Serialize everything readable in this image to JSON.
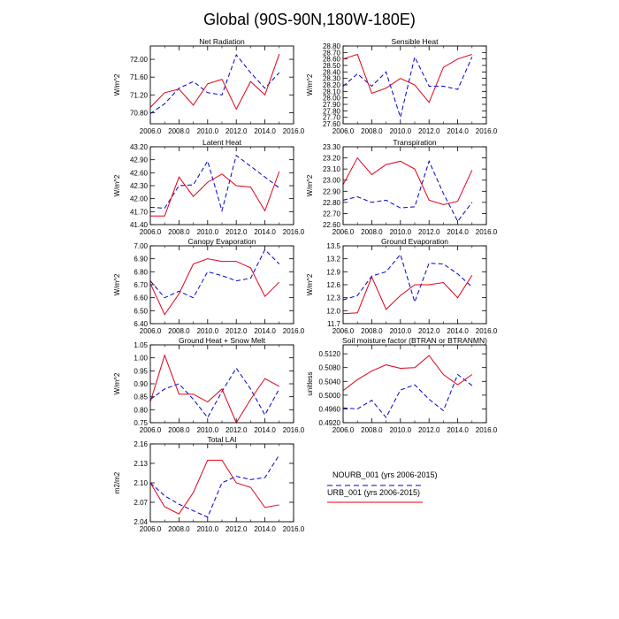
{
  "title": "Global (90S-90N,180W-180E)",
  "colors": {
    "nourb": "#0000cc",
    "urb": "#e0001a",
    "axis": "#000000"
  },
  "legend": {
    "nourb_label": "NOURB_001 (yrs 2006-2015)",
    "urb_label": "URB_001 (yrs 2006-2015)"
  },
  "chart_data": [
    {
      "type": "line",
      "title": "Net Radiation",
      "ylabel": "W/m^2",
      "xlim": [
        2006,
        2016
      ],
      "xticks": [
        "2006.0",
        "2008.0",
        "2010.0",
        "2012.0",
        "2014.0",
        "2016.0"
      ],
      "ylim": [
        70.55,
        72.3
      ],
      "yticks": [
        "70.80",
        "71.20",
        "71.60",
        "72.00"
      ],
      "ytick_values": [
        70.8,
        71.2,
        71.6,
        72.0
      ],
      "x": [
        2006,
        2007,
        2008,
        2009,
        2010,
        2011,
        2012,
        2013,
        2014,
        2015
      ],
      "series": [
        {
          "name": "NOURB_001 (yrs 2006-2015)",
          "values": [
            70.78,
            71.0,
            71.35,
            71.5,
            71.25,
            71.2,
            72.1,
            71.7,
            71.35,
            71.7
          ]
        },
        {
          "name": "URB_001 (yrs 2006-2015)",
          "values": [
            70.92,
            71.25,
            71.33,
            70.97,
            71.45,
            71.55,
            70.88,
            71.5,
            71.2,
            72.12
          ]
        }
      ]
    },
    {
      "type": "line",
      "title": "Sensible Heat",
      "ylabel": "W/m^2",
      "xlim": [
        2006,
        2016
      ],
      "xticks": [
        "2006.0",
        "2008.0",
        "2010.0",
        "2012.0",
        "2014.0",
        "2016.0"
      ],
      "ylim": [
        27.6,
        28.8
      ],
      "yticks": [
        "27.60",
        "27.70",
        "27.80",
        "27.90",
        "28.00",
        "28.10",
        "28.20",
        "28.30",
        "28.40",
        "28.50",
        "28.60",
        "28.70",
        "28.80"
      ],
      "ytick_values": [
        27.6,
        27.7,
        27.8,
        27.9,
        28.0,
        28.1,
        28.2,
        28.3,
        28.4,
        28.5,
        28.6,
        28.7,
        28.8
      ],
      "x": [
        2006,
        2007,
        2008,
        2009,
        2010,
        2011,
        2012,
        2013,
        2014,
        2015
      ],
      "series": [
        {
          "name": "NOURB_001 (yrs 2006-2015)",
          "values": [
            28.18,
            28.37,
            28.18,
            28.4,
            27.7,
            28.63,
            28.18,
            28.18,
            28.13,
            28.63
          ]
        },
        {
          "name": "URB_001 (yrs 2006-2015)",
          "values": [
            28.6,
            28.67,
            28.07,
            28.15,
            28.3,
            28.2,
            27.93,
            28.47,
            28.6,
            28.67
          ]
        }
      ]
    },
    {
      "type": "line",
      "title": "Latent Heat",
      "ylabel": "W/m^2",
      "xlim": [
        2006,
        2016
      ],
      "xticks": [
        "2006.0",
        "2008.0",
        "2010.0",
        "2012.0",
        "2014.0",
        "2016.0"
      ],
      "ylim": [
        41.4,
        43.2
      ],
      "yticks": [
        "41.40",
        "41.70",
        "42.00",
        "42.30",
        "42.60",
        "42.90",
        "43.20"
      ],
      "ytick_values": [
        41.4,
        41.7,
        42.0,
        42.3,
        42.6,
        42.9,
        43.2
      ],
      "x": [
        2006,
        2007,
        2008,
        2009,
        2010,
        2011,
        2012,
        2013,
        2014,
        2015
      ],
      "series": [
        {
          "name": "NOURB_001 (yrs 2006-2015)",
          "values": [
            41.8,
            41.78,
            42.3,
            42.32,
            42.87,
            41.72,
            43.0,
            42.75,
            42.5,
            42.25
          ]
        },
        {
          "name": "URB_001 (yrs 2006-2015)",
          "values": [
            41.6,
            41.6,
            42.5,
            42.05,
            42.38,
            42.57,
            42.3,
            42.27,
            41.72,
            42.63
          ]
        }
      ]
    },
    {
      "type": "line",
      "title": "Transpiration",
      "ylabel": "W/m^2",
      "xlim": [
        2006,
        2016
      ],
      "xticks": [
        "2006.0",
        "2008.0",
        "2010.0",
        "2012.0",
        "2014.0",
        "2016.0"
      ],
      "ylim": [
        22.6,
        23.3
      ],
      "yticks": [
        "22.60",
        "22.70",
        "22.80",
        "22.90",
        "23.00",
        "23.10",
        "23.20",
        "23.30"
      ],
      "ytick_values": [
        22.6,
        22.7,
        22.8,
        22.9,
        23.0,
        23.1,
        23.2,
        23.3
      ],
      "x": [
        2006,
        2007,
        2008,
        2009,
        2010,
        2011,
        2012,
        2013,
        2014,
        2015
      ],
      "series": [
        {
          "name": "NOURB_001 (yrs 2006-2015)",
          "values": [
            22.82,
            22.85,
            22.8,
            22.82,
            22.75,
            22.76,
            23.17,
            22.88,
            22.63,
            22.8
          ]
        },
        {
          "name": "URB_001 (yrs 2006-2015)",
          "values": [
            22.96,
            23.2,
            23.05,
            23.14,
            23.17,
            23.1,
            22.82,
            22.78,
            22.81,
            23.09
          ]
        }
      ]
    },
    {
      "type": "line",
      "title": "Canopy Evaporation",
      "ylabel": "W/m^2",
      "xlim": [
        2006,
        2016
      ],
      "xticks": [
        "2006.0",
        "2008.0",
        "2010.0",
        "2012.0",
        "2014.0",
        "2016.0"
      ],
      "ylim": [
        6.4,
        7.0
      ],
      "yticks": [
        "6.40",
        "6.50",
        "6.60",
        "6.70",
        "6.80",
        "6.90",
        "7.00"
      ],
      "ytick_values": [
        6.4,
        6.5,
        6.6,
        6.7,
        6.8,
        6.9,
        7.0
      ],
      "x": [
        2006,
        2007,
        2008,
        2009,
        2010,
        2011,
        2012,
        2013,
        2014,
        2015
      ],
      "series": [
        {
          "name": "NOURB_001 (yrs 2006-2015)",
          "values": [
            6.73,
            6.6,
            6.65,
            6.6,
            6.8,
            6.77,
            6.73,
            6.75,
            6.97,
            6.86
          ]
        },
        {
          "name": "URB_001 (yrs 2006-2015)",
          "values": [
            6.71,
            6.47,
            6.63,
            6.86,
            6.9,
            6.88,
            6.88,
            6.83,
            6.61,
            6.72
          ]
        }
      ]
    },
    {
      "type": "line",
      "title": "Ground Evaporation",
      "ylabel": "W/m^2",
      "xlim": [
        2006,
        2016
      ],
      "xticks": [
        "2006.0",
        "2008.0",
        "2010.0",
        "2012.0",
        "2014.0",
        "2016.0"
      ],
      "ylim": [
        11.7,
        13.5
      ],
      "yticks": [
        "11.7",
        "12.0",
        "12.3",
        "12.6",
        "12.9",
        "13.2",
        "13.5"
      ],
      "ytick_values": [
        11.7,
        12.0,
        12.3,
        12.6,
        12.9,
        13.2,
        13.5
      ],
      "x": [
        2006,
        2007,
        2008,
        2009,
        2010,
        2011,
        2012,
        2013,
        2014,
        2015
      ],
      "series": [
        {
          "name": "NOURB_001 (yrs 2006-2015)",
          "values": [
            12.25,
            12.35,
            12.8,
            12.9,
            13.3,
            12.2,
            13.1,
            13.08,
            12.85,
            12.55
          ]
        },
        {
          "name": "URB_001 (yrs 2006-2015)",
          "values": [
            11.93,
            11.95,
            12.78,
            12.03,
            12.35,
            12.6,
            12.6,
            12.65,
            12.3,
            12.82
          ]
        }
      ]
    },
    {
      "type": "line",
      "title": "Ground Heat + Snow Melt",
      "ylabel": "W/m^2",
      "xlim": [
        2006,
        2016
      ],
      "xticks": [
        "2006.0",
        "2008.0",
        "2010.0",
        "2012.0",
        "2014.0",
        "2016.0"
      ],
      "ylim": [
        0.75,
        1.05
      ],
      "yticks": [
        "0.75",
        "0.80",
        "0.85",
        "0.90",
        "0.95",
        "1.00",
        "1.05"
      ],
      "ytick_values": [
        0.75,
        0.8,
        0.85,
        0.9,
        0.95,
        1.0,
        1.05
      ],
      "x": [
        2006,
        2007,
        2008,
        2009,
        2010,
        2011,
        2012,
        2013,
        2014,
        2015
      ],
      "series": [
        {
          "name": "NOURB_001 (yrs 2006-2015)",
          "values": [
            0.84,
            0.88,
            0.9,
            0.84,
            0.77,
            0.87,
            0.96,
            0.88,
            0.78,
            0.88
          ]
        },
        {
          "name": "URB_001 (yrs 2006-2015)",
          "values": [
            0.83,
            1.01,
            0.86,
            0.86,
            0.83,
            0.88,
            0.75,
            0.84,
            0.92,
            0.89
          ]
        }
      ]
    },
    {
      "type": "line",
      "title": "Soil moisture factor (BTRAN or BTRANMN)",
      "ylabel": "unitless",
      "xlim": [
        2006,
        2016
      ],
      "xticks": [
        "2006.0",
        "2008.0",
        "2010.0",
        "2012.0",
        "2014.0",
        "2016.0"
      ],
      "ylim": [
        0.492,
        0.5146
      ],
      "yticks": [
        "0.4920",
        "0.4960",
        "0.5000",
        "0.5040",
        "0.5080",
        "0.5120"
      ],
      "ytick_values": [
        0.492,
        0.496,
        0.5,
        0.504,
        0.508,
        0.512
      ],
      "x": [
        2006,
        2007,
        2008,
        2009,
        2010,
        2011,
        2012,
        2013,
        2014,
        2015
      ],
      "series": [
        {
          "name": "NOURB_001 (yrs 2006-2015)",
          "values": [
            0.4963,
            0.496,
            0.4985,
            0.4935,
            0.5015,
            0.503,
            0.4988,
            0.4955,
            0.506,
            0.5028
          ]
        },
        {
          "name": "URB_001 (yrs 2006-2015)",
          "values": [
            0.5013,
            0.5045,
            0.507,
            0.5088,
            0.5078,
            0.508,
            0.5115,
            0.506,
            0.503,
            0.506
          ]
        }
      ]
    },
    {
      "type": "line",
      "title": "Total LAI",
      "ylabel": "m2/m2",
      "xlim": [
        2006,
        2016
      ],
      "xticks": [
        "2006.0",
        "2008.0",
        "2010.0",
        "2012.0",
        "2014.0",
        "2016.0"
      ],
      "ylim": [
        2.04,
        2.16
      ],
      "yticks": [
        "2.04",
        "2.07",
        "2.10",
        "2.13",
        "2.16"
      ],
      "ytick_values": [
        2.04,
        2.07,
        2.1,
        2.13,
        2.16
      ],
      "x": [
        2006,
        2007,
        2008,
        2009,
        2010,
        2011,
        2012,
        2013,
        2014,
        2015
      ],
      "series": [
        {
          "name": "NOURB_001 (yrs 2006-2015)",
          "values": [
            2.1,
            2.08,
            2.067,
            2.057,
            2.047,
            2.1,
            2.11,
            2.105,
            2.108,
            2.143
          ]
        },
        {
          "name": "URB_001 (yrs 2006-2015)",
          "values": [
            2.1,
            2.063,
            2.052,
            2.085,
            2.135,
            2.135,
            2.1,
            2.093,
            2.062,
            2.066
          ]
        }
      ]
    }
  ]
}
